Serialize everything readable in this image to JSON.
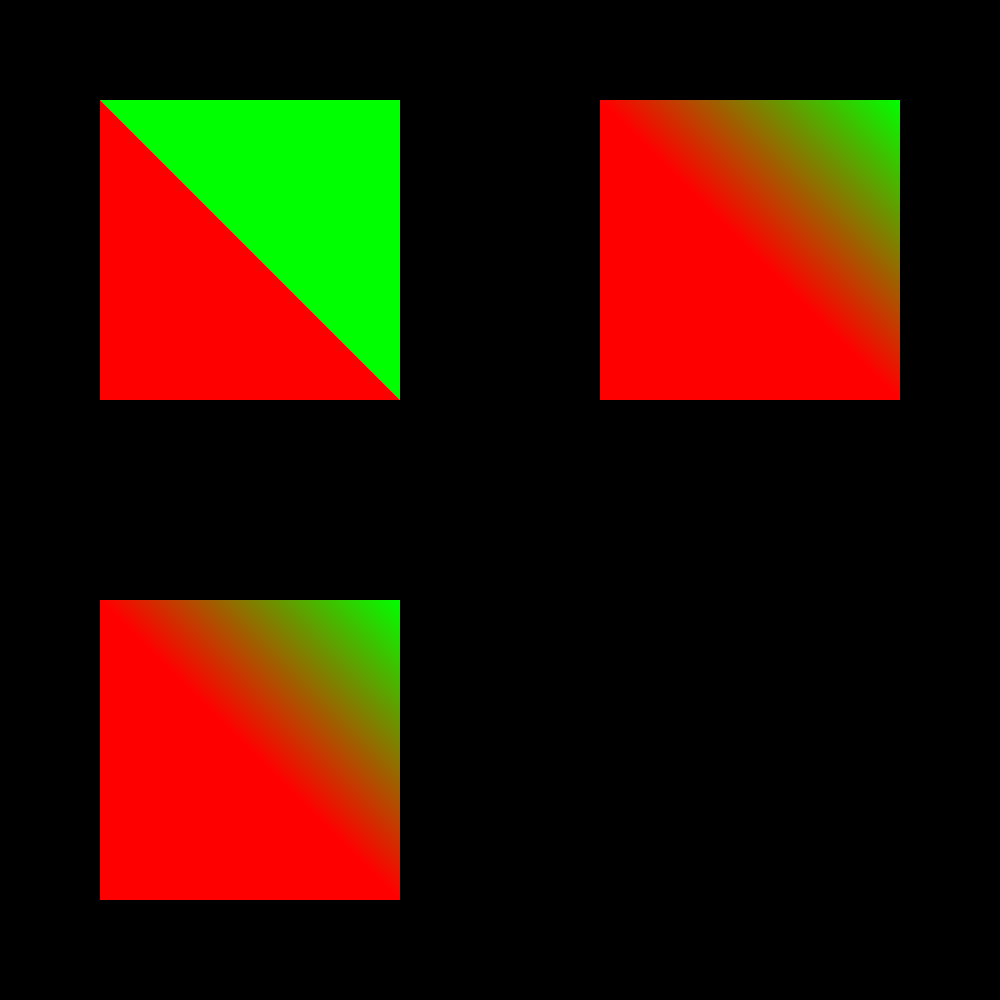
{
  "background_color": "#000000",
  "swatches": [
    {
      "id": "swatch-hard",
      "kind": "hard-diagonal-split",
      "color_from": "#ff0000",
      "color_to": "#00ff00",
      "stops": [
        0.5,
        0.5
      ]
    },
    {
      "id": "swatch-smooth-a",
      "kind": "diagonal-gradient",
      "color_from": "#ff0000",
      "color_to": "#00ff00",
      "stops": [
        0.5,
        1.0
      ]
    },
    {
      "id": "swatch-smooth-b",
      "kind": "diagonal-gradient",
      "color_from": "#ff0000",
      "color_to": "#00ff00",
      "stops": [
        0.5,
        1.0
      ]
    }
  ]
}
